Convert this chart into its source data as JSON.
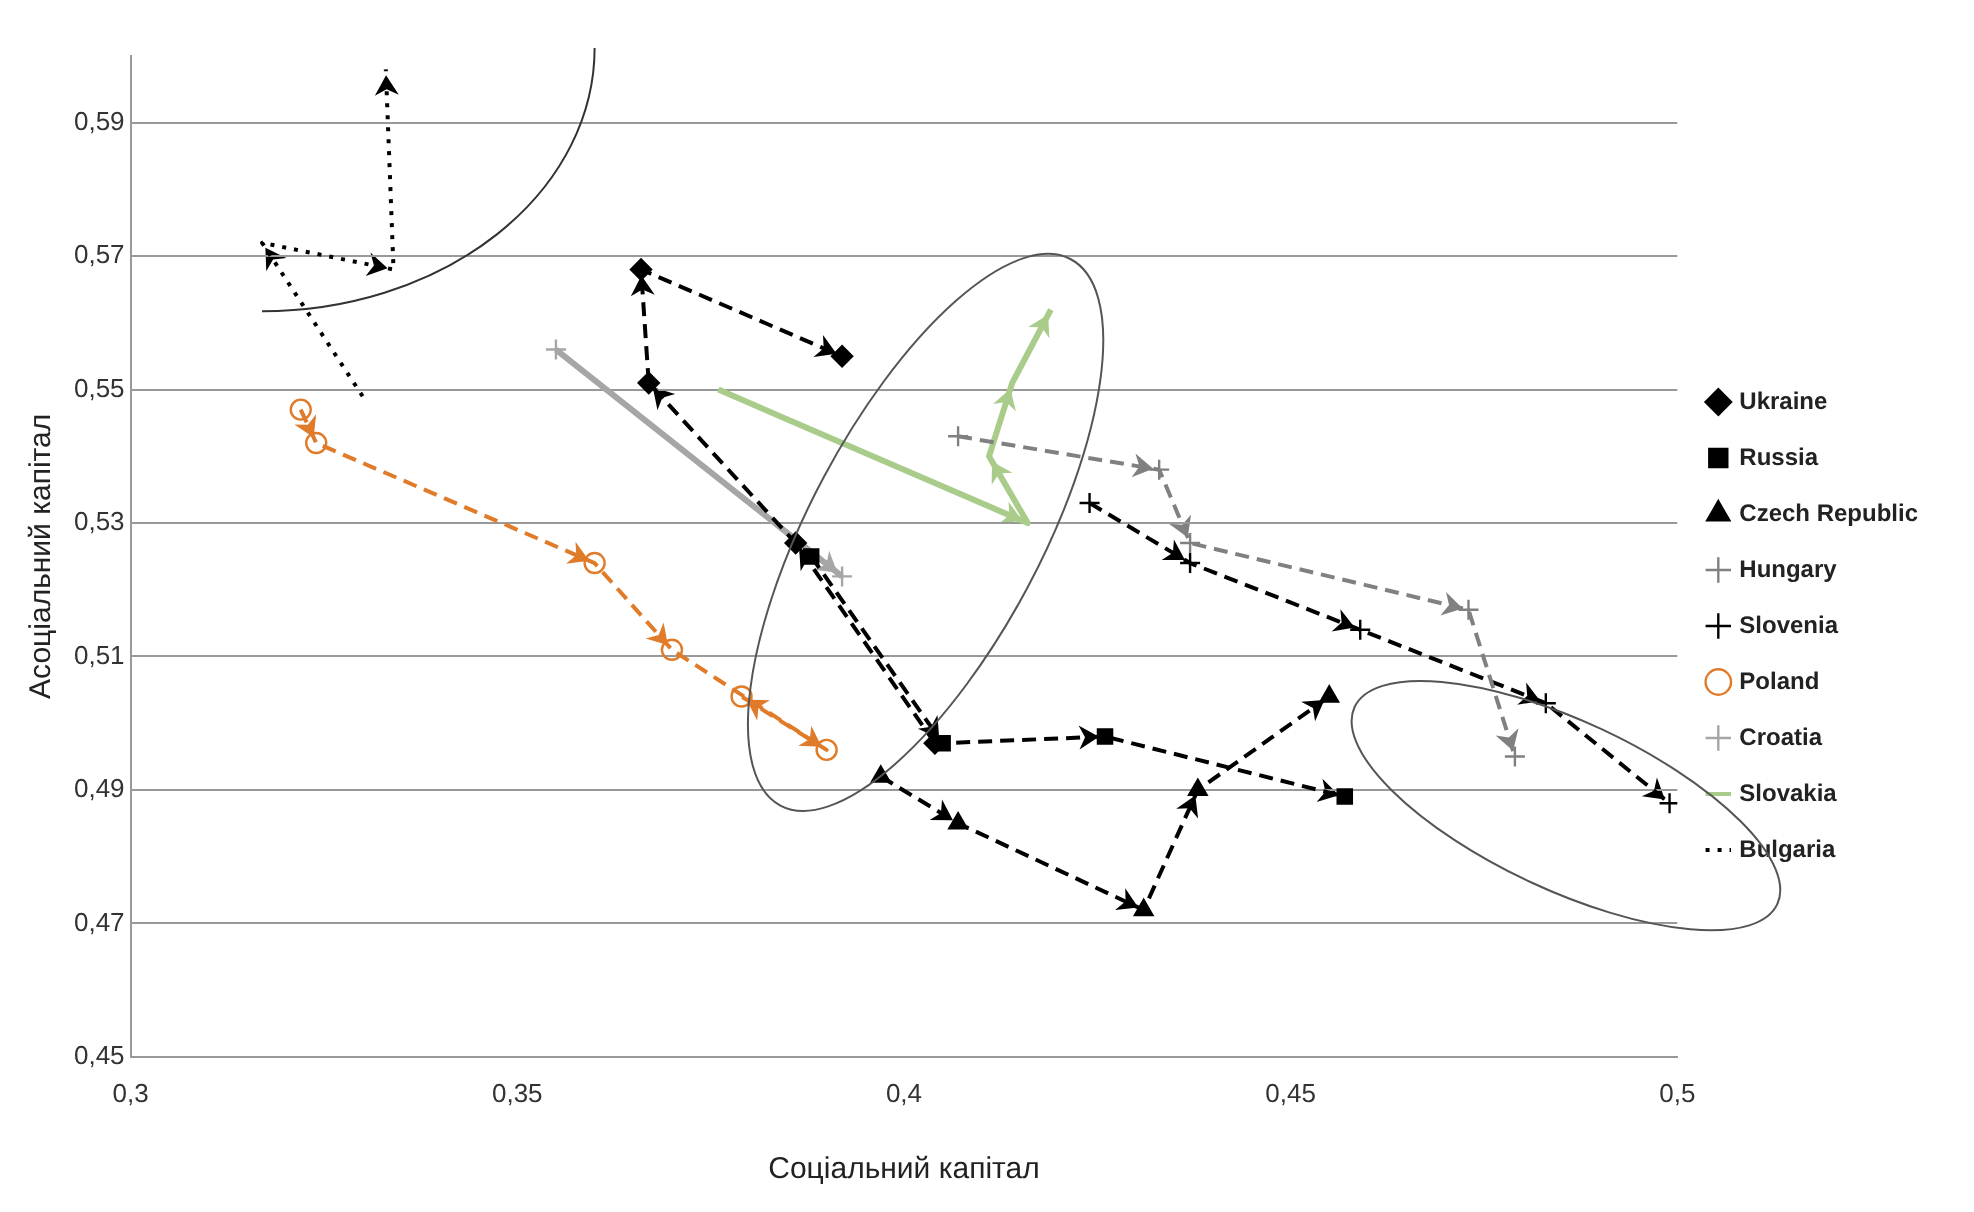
{
  "chart_data": {
    "type": "line",
    "xlabel": "Соціальний капітал",
    "ylabel": "Асоціальний капітал",
    "xlim": [
      0.3,
      0.5
    ],
    "ylim": [
      0.45,
      0.6
    ],
    "xticks": [
      {
        "value": 0.3,
        "label": "0,3"
      },
      {
        "value": 0.35,
        "label": "0,35"
      },
      {
        "value": 0.4,
        "label": "0,4"
      },
      {
        "value": 0.45,
        "label": "0,45"
      },
      {
        "value": 0.5,
        "label": "0,5"
      }
    ],
    "yticks": [
      {
        "value": 0.45,
        "label": "0,45"
      },
      {
        "value": 0.47,
        "label": "0,47"
      },
      {
        "value": 0.49,
        "label": "0,49"
      },
      {
        "value": 0.51,
        "label": "0,51"
      },
      {
        "value": 0.53,
        "label": "0,53"
      },
      {
        "value": 0.55,
        "label": "0,55"
      },
      {
        "value": 0.57,
        "label": "0,57"
      },
      {
        "value": 0.59,
        "label": "0,59"
      }
    ],
    "grid": "y",
    "legend": "right",
    "series": [
      {
        "name": "Ukraine",
        "color": "#000000",
        "line_style": "dashed",
        "marker": "diamond",
        "x": [
          0.404,
          0.386,
          0.367,
          0.366,
          0.392
        ],
        "values": [
          0.497,
          0.527,
          0.551,
          0.568,
          0.555
        ]
      },
      {
        "name": "Russia",
        "color": "#000000",
        "line_style": "dashed",
        "marker": "square",
        "x": [
          0.388,
          0.405,
          0.426,
          0.457
        ],
        "values": [
          0.525,
          0.497,
          0.498,
          0.489
        ]
      },
      {
        "name": "Czech Republic",
        "color": "#000000",
        "line_style": "dashed",
        "marker": "triangle",
        "x": [
          0.397,
          0.407,
          0.431,
          0.438,
          0.455
        ],
        "values": [
          0.492,
          0.485,
          0.472,
          0.49,
          0.504
        ]
      },
      {
        "name": "Hungary",
        "color": "#808080",
        "line_style": "dashed",
        "marker": "cross",
        "x": [
          0.407,
          0.433,
          0.437,
          0.473,
          0.479
        ],
        "values": [
          0.543,
          0.538,
          0.527,
          0.517,
          0.495
        ]
      },
      {
        "name": "Slovenia",
        "color": "#000000",
        "line_style": "dashed",
        "marker": "cross",
        "x": [
          0.424,
          0.437,
          0.459,
          0.483,
          0.499
        ],
        "values": [
          0.533,
          0.524,
          0.514,
          0.503,
          0.488
        ]
      },
      {
        "name": "Poland",
        "color": "#e07b2a",
        "line_style": "dashed",
        "marker": "circle",
        "x": [
          0.322,
          0.324,
          0.36,
          0.37,
          0.39,
          0.379
        ],
        "values": [
          0.547,
          0.542,
          0.524,
          0.511,
          0.496,
          0.504
        ]
      },
      {
        "name": "Croatia",
        "color": "#a6a6a6",
        "line_style": "solid",
        "marker": "cross",
        "x": [
          0.355,
          0.392
        ],
        "values": [
          0.556,
          0.522
        ]
      },
      {
        "name": "Slovakia",
        "color": "#a9cc8a",
        "line_style": "solid",
        "marker": "none",
        "x": [
          0.376,
          0.416,
          0.411,
          0.414,
          0.419
        ],
        "values": [
          0.55,
          0.53,
          0.54,
          0.551,
          0.562
        ]
      },
      {
        "name": "Bulgaria",
        "color": "#000000",
        "line_style": "dotted",
        "marker": "none",
        "x": [
          0.33,
          0.317,
          0.334,
          0.333
        ],
        "values": [
          0.549,
          0.572,
          0.568,
          0.598
        ]
      }
    ]
  }
}
